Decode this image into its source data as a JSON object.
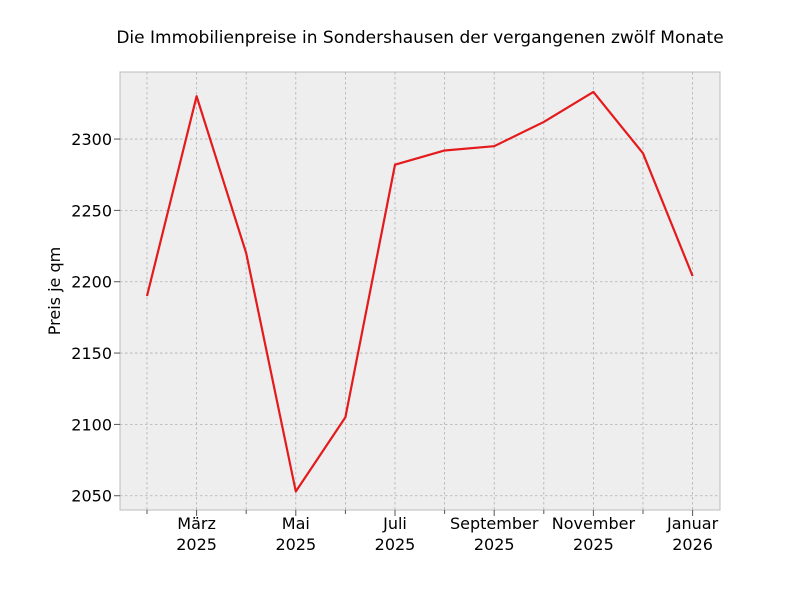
{
  "chart_data": {
    "type": "line",
    "title": "Die Immobilienpreise in Sondershausen der vergangenen zwölf Monate",
    "xlabel": "",
    "ylabel": "Preis je qm",
    "x": [
      "2025-02",
      "2025-03",
      "2025-04",
      "2025-05",
      "2025-06",
      "2025-07",
      "2025-08",
      "2025-09",
      "2025-10",
      "2025-11",
      "2025-12",
      "2026-01"
    ],
    "series": [
      {
        "values": [
          2190,
          2330,
          2220,
          2053,
          2105,
          2282,
          2292,
          2295,
          2312,
          2333,
          2290,
          2204
        ]
      }
    ],
    "ylim": [
      2040,
      2347
    ],
    "yticks": [
      2050,
      2100,
      2150,
      2200,
      2250,
      2300
    ],
    "xticks": [
      {
        "x": "2025-03",
        "label": "März",
        "year": "2025"
      },
      {
        "x": "2025-05",
        "label": "Mai",
        "year": "2025"
      },
      {
        "x": "2025-07",
        "label": "Juli",
        "year": "2025"
      },
      {
        "x": "2025-09",
        "label": "September",
        "year": "2025"
      },
      {
        "x": "2025-11",
        "label": "November",
        "year": "2025"
      },
      {
        "x": "2026-01",
        "label": "Januar",
        "year": "2026"
      }
    ],
    "minor_xticks": [
      "2025-02",
      "2025-04",
      "2025-06",
      "2025-08",
      "2025-10",
      "2025-12"
    ],
    "grid": true,
    "colors": {
      "line": "#e41a1c",
      "plot_background": "#eeeeee",
      "grid": "#b0b0b0"
    }
  }
}
